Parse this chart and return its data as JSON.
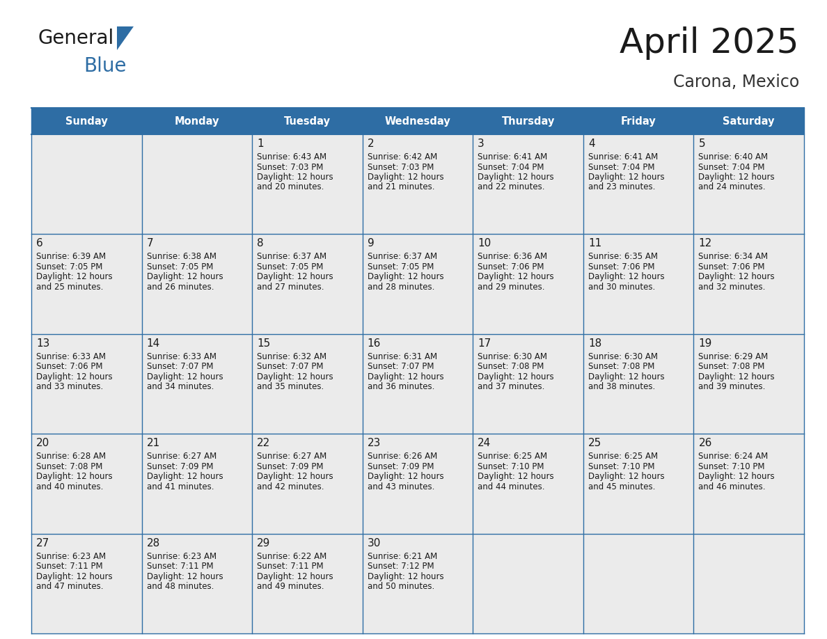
{
  "title": "April 2025",
  "subtitle": "Carona, Mexico",
  "header_bg_color": "#2e6da4",
  "header_text_color": "#ffffff",
  "cell_bg_color": "#ebebeb",
  "grid_line_color": "#2e6da4",
  "grid_line_color_thin": "#3a6a9a",
  "day_names": [
    "Sunday",
    "Monday",
    "Tuesday",
    "Wednesday",
    "Thursday",
    "Friday",
    "Saturday"
  ],
  "background_color": "#ffffff",
  "title_color": "#1a1a1a",
  "subtitle_color": "#333333",
  "cell_text_color": "#1a1a1a",
  "logo_text_color": "#1a1a1a",
  "logo_blue_color": "#2e6da4",
  "days": [
    {
      "day": 1,
      "col": 2,
      "row": 0,
      "sunrise": "6:43 AM",
      "sunset": "7:03 PM",
      "daylight_hours": 12,
      "daylight_minutes": 20
    },
    {
      "day": 2,
      "col": 3,
      "row": 0,
      "sunrise": "6:42 AM",
      "sunset": "7:03 PM",
      "daylight_hours": 12,
      "daylight_minutes": 21
    },
    {
      "day": 3,
      "col": 4,
      "row": 0,
      "sunrise": "6:41 AM",
      "sunset": "7:04 PM",
      "daylight_hours": 12,
      "daylight_minutes": 22
    },
    {
      "day": 4,
      "col": 5,
      "row": 0,
      "sunrise": "6:41 AM",
      "sunset": "7:04 PM",
      "daylight_hours": 12,
      "daylight_minutes": 23
    },
    {
      "day": 5,
      "col": 6,
      "row": 0,
      "sunrise": "6:40 AM",
      "sunset": "7:04 PM",
      "daylight_hours": 12,
      "daylight_minutes": 24
    },
    {
      "day": 6,
      "col": 0,
      "row": 1,
      "sunrise": "6:39 AM",
      "sunset": "7:05 PM",
      "daylight_hours": 12,
      "daylight_minutes": 25
    },
    {
      "day": 7,
      "col": 1,
      "row": 1,
      "sunrise": "6:38 AM",
      "sunset": "7:05 PM",
      "daylight_hours": 12,
      "daylight_minutes": 26
    },
    {
      "day": 8,
      "col": 2,
      "row": 1,
      "sunrise": "6:37 AM",
      "sunset": "7:05 PM",
      "daylight_hours": 12,
      "daylight_minutes": 27
    },
    {
      "day": 9,
      "col": 3,
      "row": 1,
      "sunrise": "6:37 AM",
      "sunset": "7:05 PM",
      "daylight_hours": 12,
      "daylight_minutes": 28
    },
    {
      "day": 10,
      "col": 4,
      "row": 1,
      "sunrise": "6:36 AM",
      "sunset": "7:06 PM",
      "daylight_hours": 12,
      "daylight_minutes": 29
    },
    {
      "day": 11,
      "col": 5,
      "row": 1,
      "sunrise": "6:35 AM",
      "sunset": "7:06 PM",
      "daylight_hours": 12,
      "daylight_minutes": 30
    },
    {
      "day": 12,
      "col": 6,
      "row": 1,
      "sunrise": "6:34 AM",
      "sunset": "7:06 PM",
      "daylight_hours": 12,
      "daylight_minutes": 32
    },
    {
      "day": 13,
      "col": 0,
      "row": 2,
      "sunrise": "6:33 AM",
      "sunset": "7:06 PM",
      "daylight_hours": 12,
      "daylight_minutes": 33
    },
    {
      "day": 14,
      "col": 1,
      "row": 2,
      "sunrise": "6:33 AM",
      "sunset": "7:07 PM",
      "daylight_hours": 12,
      "daylight_minutes": 34
    },
    {
      "day": 15,
      "col": 2,
      "row": 2,
      "sunrise": "6:32 AM",
      "sunset": "7:07 PM",
      "daylight_hours": 12,
      "daylight_minutes": 35
    },
    {
      "day": 16,
      "col": 3,
      "row": 2,
      "sunrise": "6:31 AM",
      "sunset": "7:07 PM",
      "daylight_hours": 12,
      "daylight_minutes": 36
    },
    {
      "day": 17,
      "col": 4,
      "row": 2,
      "sunrise": "6:30 AM",
      "sunset": "7:08 PM",
      "daylight_hours": 12,
      "daylight_minutes": 37
    },
    {
      "day": 18,
      "col": 5,
      "row": 2,
      "sunrise": "6:30 AM",
      "sunset": "7:08 PM",
      "daylight_hours": 12,
      "daylight_minutes": 38
    },
    {
      "day": 19,
      "col": 6,
      "row": 2,
      "sunrise": "6:29 AM",
      "sunset": "7:08 PM",
      "daylight_hours": 12,
      "daylight_minutes": 39
    },
    {
      "day": 20,
      "col": 0,
      "row": 3,
      "sunrise": "6:28 AM",
      "sunset": "7:08 PM",
      "daylight_hours": 12,
      "daylight_minutes": 40
    },
    {
      "day": 21,
      "col": 1,
      "row": 3,
      "sunrise": "6:27 AM",
      "sunset": "7:09 PM",
      "daylight_hours": 12,
      "daylight_minutes": 41
    },
    {
      "day": 22,
      "col": 2,
      "row": 3,
      "sunrise": "6:27 AM",
      "sunset": "7:09 PM",
      "daylight_hours": 12,
      "daylight_minutes": 42
    },
    {
      "day": 23,
      "col": 3,
      "row": 3,
      "sunrise": "6:26 AM",
      "sunset": "7:09 PM",
      "daylight_hours": 12,
      "daylight_minutes": 43
    },
    {
      "day": 24,
      "col": 4,
      "row": 3,
      "sunrise": "6:25 AM",
      "sunset": "7:10 PM",
      "daylight_hours": 12,
      "daylight_minutes": 44
    },
    {
      "day": 25,
      "col": 5,
      "row": 3,
      "sunrise": "6:25 AM",
      "sunset": "7:10 PM",
      "daylight_hours": 12,
      "daylight_minutes": 45
    },
    {
      "day": 26,
      "col": 6,
      "row": 3,
      "sunrise": "6:24 AM",
      "sunset": "7:10 PM",
      "daylight_hours": 12,
      "daylight_minutes": 46
    },
    {
      "day": 27,
      "col": 0,
      "row": 4,
      "sunrise": "6:23 AM",
      "sunset": "7:11 PM",
      "daylight_hours": 12,
      "daylight_minutes": 47
    },
    {
      "day": 28,
      "col": 1,
      "row": 4,
      "sunrise": "6:23 AM",
      "sunset": "7:11 PM",
      "daylight_hours": 12,
      "daylight_minutes": 48
    },
    {
      "day": 29,
      "col": 2,
      "row": 4,
      "sunrise": "6:22 AM",
      "sunset": "7:11 PM",
      "daylight_hours": 12,
      "daylight_minutes": 49
    },
    {
      "day": 30,
      "col": 3,
      "row": 4,
      "sunrise": "6:21 AM",
      "sunset": "7:12 PM",
      "daylight_hours": 12,
      "daylight_minutes": 50
    }
  ]
}
